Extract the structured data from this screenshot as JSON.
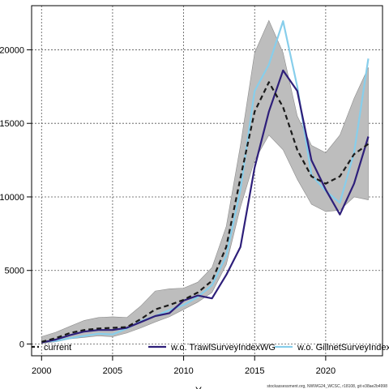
{
  "chart_data": {
    "type": "line",
    "title": "",
    "xlabel": "Y",
    "ylabel": "",
    "xlim": [
      1999.3,
      2024.0
    ],
    "ylim": [
      -800,
      23000
    ],
    "x_ticks": [
      2000,
      2005,
      2010,
      2015,
      2020
    ],
    "y_ticks": [
      0,
      5000,
      10000,
      15000,
      20000
    ],
    "grid": true,
    "legend_position": "bottom",
    "x": [
      2000,
      2001,
      2002,
      2003,
      2004,
      2005,
      2006,
      2007,
      2008,
      2009,
      2010,
      2011,
      2012,
      2013,
      2014,
      2015,
      2016,
      2017,
      2018,
      2019,
      2020,
      2021,
      2022,
      2023
    ],
    "band": {
      "upper": [
        500,
        800,
        1200,
        1600,
        1800,
        1850,
        1800,
        2600,
        3600,
        3750,
        3800,
        4200,
        5200,
        8000,
        13500,
        19800,
        22000,
        19800,
        15500,
        13500,
        13000,
        14200,
        16700,
        18800
      ],
      "lower": [
        50,
        150,
        350,
        450,
        550,
        500,
        750,
        1100,
        1500,
        1850,
        2350,
        2850,
        3500,
        5400,
        9300,
        12500,
        14200,
        13200,
        11200,
        9500,
        9000,
        9100,
        10000,
        9800
      ],
      "color": "#bdbdbd"
    },
    "series": [
      {
        "name": "current",
        "color": "#1a1a1a",
        "dash": "6,4",
        "values": [
          150,
          400,
          750,
          950,
          1050,
          1100,
          1150,
          1700,
          2350,
          2650,
          3000,
          3500,
          4300,
          6600,
          11300,
          15800,
          17800,
          16100,
          13200,
          11400,
          10900,
          11400,
          12900,
          13600
        ]
      },
      {
        "name": "w.o. TrawlSurveyIndexWG",
        "color": "#2e1f7a",
        "dash": "",
        "values": [
          100,
          300,
          600,
          850,
          950,
          950,
          1100,
          1500,
          1900,
          2100,
          2950,
          3300,
          3100,
          4700,
          6600,
          12000,
          15800,
          18600,
          17200,
          12500,
          10500,
          8800,
          10900,
          14100
        ]
      },
      {
        "name": "w.o. GillnetSurveyIndex",
        "color": "#87ceeb",
        "dash": "",
        "values": [
          150,
          200,
          400,
          550,
          700,
          650,
          1050,
          1550,
          1900,
          2300,
          2650,
          3200,
          4000,
          6000,
          10500,
          17200,
          19000,
          21950,
          17500,
          11500,
          10400,
          9600,
          13000,
          19400
        ]
      }
    ]
  },
  "footnote": "stockassessment.org, NWWG24_WCSC, r18108, git e38ae2b4998"
}
